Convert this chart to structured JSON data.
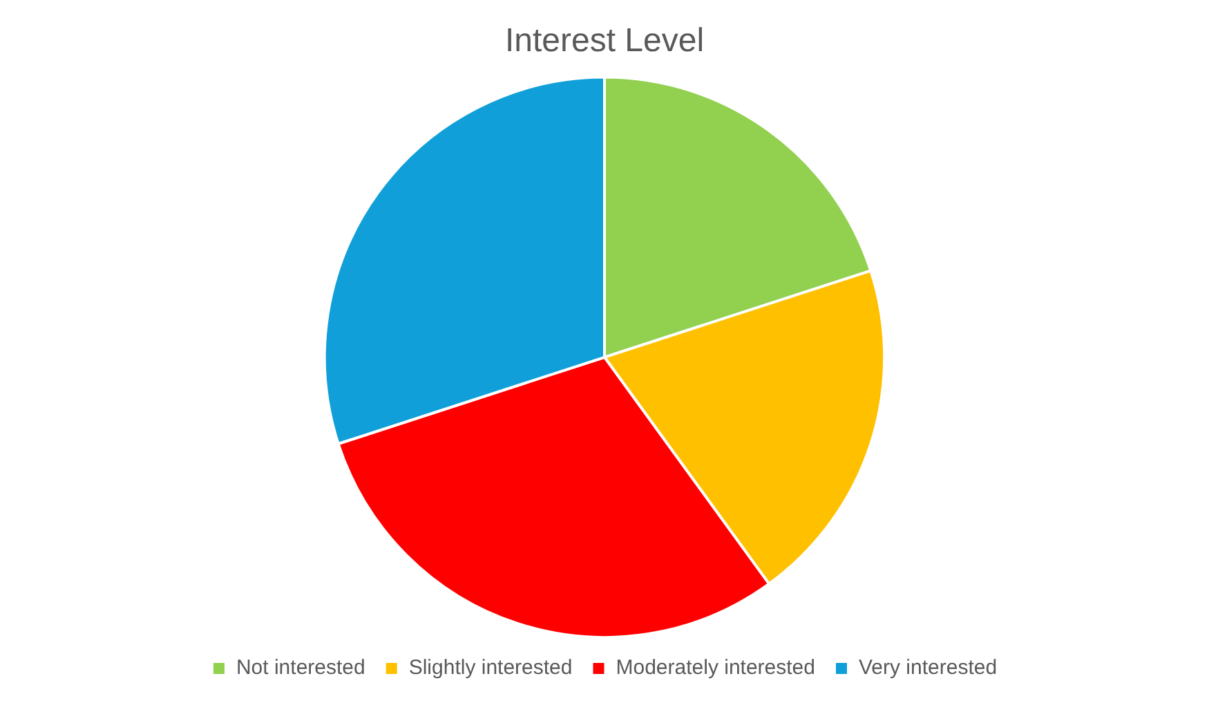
{
  "chart_data": {
    "type": "pie",
    "title": "Interest Level",
    "categories": [
      "Not interested",
      "Slightly interested",
      "Moderately interested",
      "Very interested"
    ],
    "values": [
      20,
      20,
      30,
      30
    ],
    "colors": [
      "#92d050",
      "#ffc000",
      "#ff0000",
      "#109fd8"
    ],
    "legend": "bottom"
  }
}
